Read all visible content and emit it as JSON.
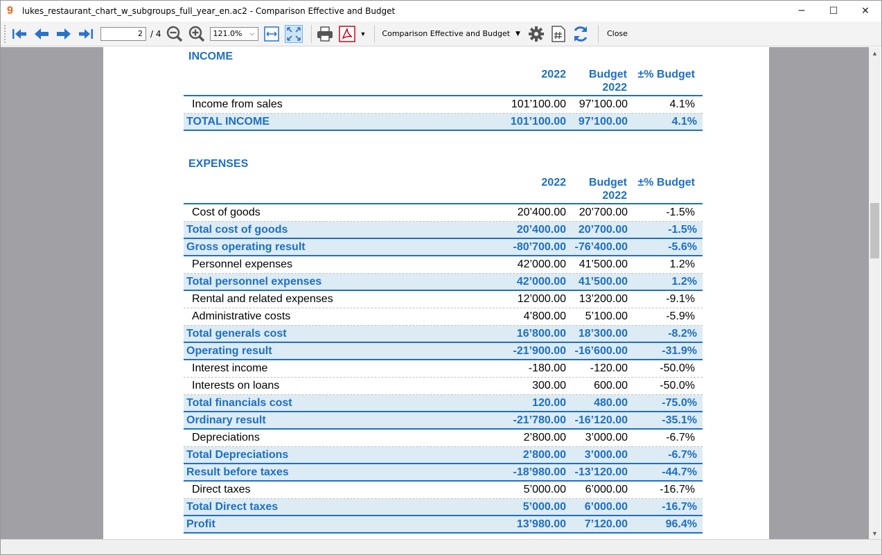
{
  "window": {
    "title": "lukes_restaurant_chart_w_subgroups_full_year_en.ac2 - Comparison Effective and Budget",
    "min_label": "─",
    "max_label": "☐",
    "close_label": "✕"
  },
  "toolbar": {
    "page_current": "2",
    "page_total": "/ 4",
    "zoom": "121.0%",
    "report_name": "Comparison Effective and Budget",
    "close_label": "Close"
  },
  "colors": {
    "accent": "#1e6fc4",
    "total_bg": "#dcebf4"
  },
  "income": {
    "title": "INCOME",
    "col1": "2022",
    "col2_line1": "Budget",
    "col2_line2": "2022",
    "col3": "±% Budget",
    "rows": [
      {
        "type": "normal",
        "label": "Income from sales",
        "v1": "101’100.00",
        "v2": "97’100.00",
        "v3": "4.1%"
      },
      {
        "type": "total",
        "label": "TOTAL INCOME",
        "v1": "101’100.00",
        "v2": "97’100.00",
        "v3": "4.1%"
      }
    ]
  },
  "expenses": {
    "title": "EXPENSES",
    "col1": "2022",
    "col2_line1": "Budget",
    "col2_line2": "2022",
    "col3": "±% Budget",
    "rows": [
      {
        "type": "normal",
        "label": "Cost of goods",
        "v1": "20’400.00",
        "v2": "20’700.00",
        "v3": "-1.5%"
      },
      {
        "type": "total",
        "label": "Total cost of goods",
        "v1": "20’400.00",
        "v2": "20’700.00",
        "v3": "-1.5%"
      },
      {
        "type": "total",
        "label": "Gross operating result",
        "v1": "-80’700.00",
        "v2": "-76’400.00",
        "v3": "-5.6%"
      },
      {
        "type": "normal",
        "label": "Personnel expenses",
        "v1": "42’000.00",
        "v2": "41’500.00",
        "v3": "1.2%"
      },
      {
        "type": "total",
        "label": "Total personnel expenses",
        "v1": "42’000.00",
        "v2": "41’500.00",
        "v3": "1.2%"
      },
      {
        "type": "normal",
        "label": "Rental and related expenses",
        "v1": "12’000.00",
        "v2": "13’200.00",
        "v3": "-9.1%"
      },
      {
        "type": "normal",
        "label": "Administrative costs",
        "v1": "4’800.00",
        "v2": "5’100.00",
        "v3": "-5.9%"
      },
      {
        "type": "total",
        "label": "Total generals cost",
        "v1": "16’800.00",
        "v2": "18’300.00",
        "v3": "-8.2%"
      },
      {
        "type": "total",
        "label": "Operating result",
        "v1": "-21’900.00",
        "v2": "-16’600.00",
        "v3": "-31.9%"
      },
      {
        "type": "normal",
        "label": "Interest income",
        "v1": "-180.00",
        "v2": "-120.00",
        "v3": "-50.0%"
      },
      {
        "type": "normal",
        "label": "Interests on loans",
        "v1": "300.00",
        "v2": "600.00",
        "v3": "-50.0%"
      },
      {
        "type": "total",
        "label": "Total financials cost",
        "v1": "120.00",
        "v2": "480.00",
        "v3": "-75.0%"
      },
      {
        "type": "total",
        "label": "Ordinary result",
        "v1": "-21’780.00",
        "v2": "-16’120.00",
        "v3": "-35.1%"
      },
      {
        "type": "normal",
        "label": "Depreciations",
        "v1": "2’800.00",
        "v2": "3’000.00",
        "v3": "-6.7%"
      },
      {
        "type": "total",
        "label": "Total Depreciations",
        "v1": "2’800.00",
        "v2": "3’000.00",
        "v3": "-6.7%"
      },
      {
        "type": "total",
        "label": "Result before taxes",
        "v1": "-18’980.00",
        "v2": "-13’120.00",
        "v3": "-44.7%"
      },
      {
        "type": "normal",
        "label": "Direct taxes",
        "v1": "5’000.00",
        "v2": "6’000.00",
        "v3": "-16.7%"
      },
      {
        "type": "total",
        "label": "Total Direct taxes",
        "v1": "5’000.00",
        "v2": "6’000.00",
        "v3": "-16.7%"
      },
      {
        "type": "total",
        "label": "Profit",
        "v1": "13’980.00",
        "v2": "7’120.00",
        "v3": "96.4%"
      }
    ]
  }
}
